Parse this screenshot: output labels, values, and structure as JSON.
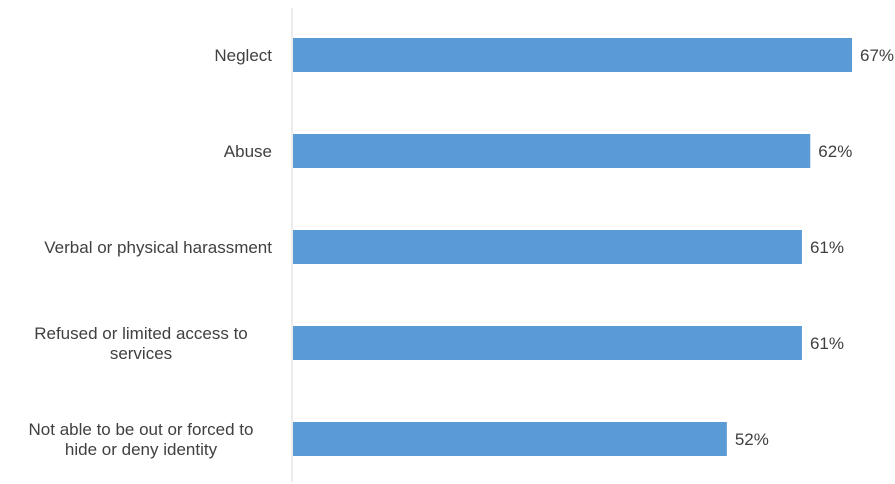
{
  "chart_data": {
    "type": "bar",
    "orientation": "horizontal",
    "title": "",
    "xlabel": "",
    "ylabel": "",
    "categories": [
      [
        "Neglect"
      ],
      [
        "Abuse"
      ],
      [
        "Verbal or physical harassment"
      ],
      [
        "Refused or limited access to",
        "services"
      ],
      [
        "Not able to be out or forced to",
        "hide or deny identity"
      ]
    ],
    "values": [
      67,
      62,
      61,
      61,
      52
    ],
    "value_labels": [
      "67%",
      "62%",
      "61%",
      "61%",
      "52%"
    ],
    "unit": "%",
    "xlim": [
      0,
      67
    ],
    "grid": false,
    "legend": "none",
    "colors": {
      "bar": "#5b9bd5",
      "axis": "#d9d9d9",
      "text": "#404040"
    }
  }
}
